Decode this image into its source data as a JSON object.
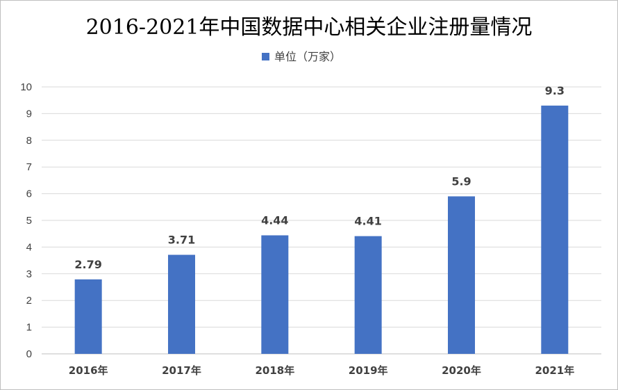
{
  "chart_data": {
    "type": "bar",
    "title": "2016-2021年中国数据中心相关企业注册量情况",
    "categories": [
      "2016年",
      "2017年",
      "2018年",
      "2019年",
      "2020年",
      "2021年"
    ],
    "series": [
      {
        "name": "单位（万家）",
        "values": [
          2.79,
          3.71,
          4.44,
          4.41,
          5.9,
          9.3
        ],
        "labels": [
          "2.79",
          "3.71",
          "4.44",
          "4.41",
          "5.9",
          "9.3"
        ],
        "color": "#4472C4"
      }
    ],
    "ylim": [
      0,
      10
    ],
    "yticks": [
      0,
      1,
      2,
      3,
      4,
      5,
      6,
      7,
      8,
      9,
      10
    ],
    "grid": true,
    "legend": "top-center"
  }
}
